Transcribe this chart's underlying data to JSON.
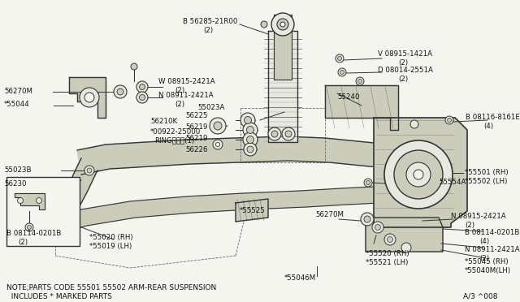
{
  "bg_color": "#f5f5f0",
  "line_color": "#333333",
  "fill_light": "#e8e8e0",
  "fill_mid": "#ccccbb",
  "fill_dark": "#aaaaaa",
  "text_color": "#111111",
  "note_line1": "NOTE;PARTS CODE 55501 55502 ARM-REAR SUSPENSION",
  "note_line2": "  INCLUDES * MARKED PARTS",
  "diagram_ref": "A/3 ^008",
  "figsize": [
    6.4,
    3.72
  ],
  "dpi": 100
}
